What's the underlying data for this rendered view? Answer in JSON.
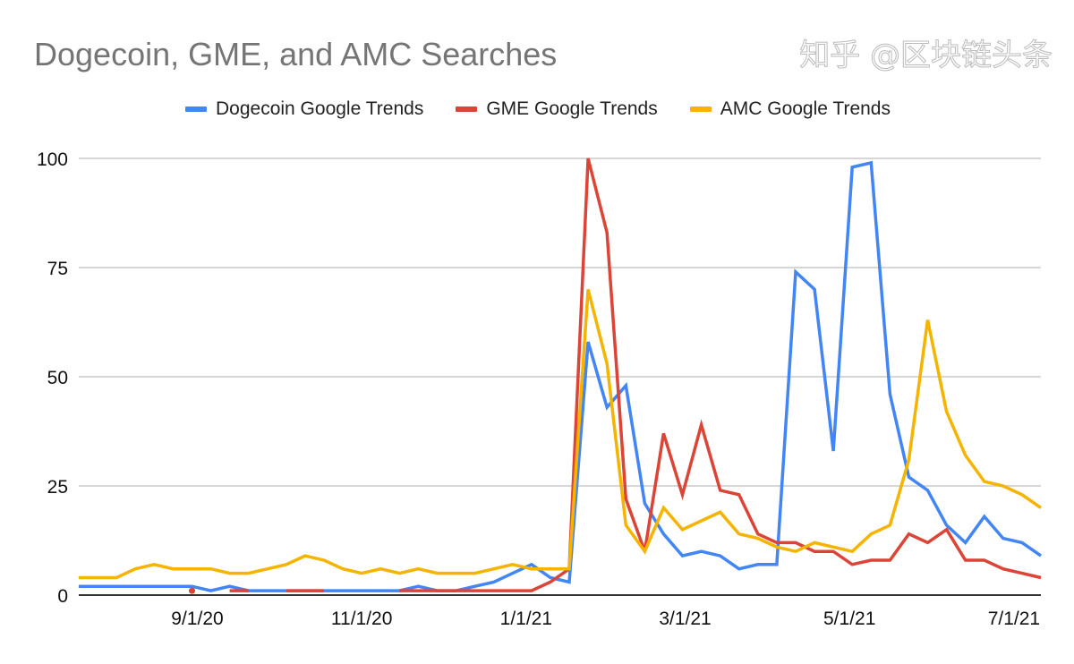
{
  "chart_data": {
    "type": "line",
    "title": "Dogecoin, GME, and AMC Searches",
    "xlabel": "",
    "ylabel": "",
    "ylim": [
      0,
      100
    ],
    "yticks": [
      "0",
      "25",
      "50",
      "75",
      "100"
    ],
    "xticks": [
      {
        "label": "9/1/20",
        "date": "2020-09-01"
      },
      {
        "label": "11/1/20",
        "date": "2020-11-01"
      },
      {
        "label": "1/1/21",
        "date": "2021-01-01"
      },
      {
        "label": "3/1/21",
        "date": "2021-03-01"
      },
      {
        "label": "5/1/21",
        "date": "2021-05-01"
      },
      {
        "label": "7/1/21",
        "date": "2021-07-01"
      }
    ],
    "grid": true,
    "legend_position": "top",
    "x": [
      "2020-07-19",
      "2020-07-26",
      "2020-08-02",
      "2020-08-09",
      "2020-08-16",
      "2020-08-23",
      "2020-08-30",
      "2020-09-06",
      "2020-09-13",
      "2020-09-20",
      "2020-09-27",
      "2020-10-04",
      "2020-10-11",
      "2020-10-18",
      "2020-10-25",
      "2020-11-01",
      "2020-11-08",
      "2020-11-15",
      "2020-11-22",
      "2020-11-29",
      "2020-12-06",
      "2020-12-13",
      "2020-12-20",
      "2020-12-27",
      "2021-01-03",
      "2021-01-10",
      "2021-01-17",
      "2021-01-24",
      "2021-01-31",
      "2021-02-07",
      "2021-02-14",
      "2021-02-21",
      "2021-02-28",
      "2021-03-07",
      "2021-03-14",
      "2021-03-21",
      "2021-03-28",
      "2021-04-04",
      "2021-04-11",
      "2021-04-18",
      "2021-04-25",
      "2021-05-02",
      "2021-05-09",
      "2021-05-16",
      "2021-05-23",
      "2021-05-30",
      "2021-06-06",
      "2021-06-13",
      "2021-06-20",
      "2021-06-27",
      "2021-07-04",
      "2021-07-11"
    ],
    "series": [
      {
        "name": "Dogecoin Google Trends",
        "color": "#4285f4",
        "values": [
          2,
          2,
          2,
          2,
          2,
          2,
          2,
          1,
          2,
          1,
          1,
          1,
          1,
          1,
          1,
          1,
          1,
          1,
          2,
          1,
          1,
          2,
          3,
          5,
          7,
          4,
          3,
          58,
          43,
          48,
          21,
          14,
          9,
          10,
          9,
          6,
          7,
          7,
          74,
          70,
          33,
          98,
          99,
          46,
          27,
          24,
          16,
          12,
          18,
          13,
          12,
          9
        ]
      },
      {
        "name": "GME Google Trends",
        "color": "#db4437",
        "values": [
          null,
          null,
          null,
          null,
          null,
          null,
          1,
          null,
          1,
          1,
          null,
          1,
          1,
          1,
          null,
          null,
          null,
          1,
          1,
          1,
          1,
          1,
          1,
          1,
          1,
          3,
          6,
          100,
          83,
          22,
          10,
          37,
          23,
          39,
          24,
          23,
          14,
          12,
          12,
          10,
          10,
          7,
          8,
          8,
          14,
          12,
          15,
          8,
          8,
          6,
          5,
          4
        ]
      },
      {
        "name": "AMC Google Trends",
        "color": "#f4b400",
        "values": [
          4,
          4,
          4,
          6,
          7,
          6,
          6,
          6,
          5,
          5,
          6,
          7,
          9,
          8,
          6,
          5,
          6,
          5,
          6,
          5,
          5,
          5,
          6,
          7,
          6,
          6,
          6,
          70,
          53,
          16,
          10,
          20,
          15,
          17,
          19,
          14,
          13,
          11,
          10,
          12,
          11,
          10,
          14,
          16,
          31,
          63,
          42,
          32,
          26,
          25,
          23,
          20
        ]
      }
    ]
  },
  "watermark": "知乎 @区块链头条"
}
